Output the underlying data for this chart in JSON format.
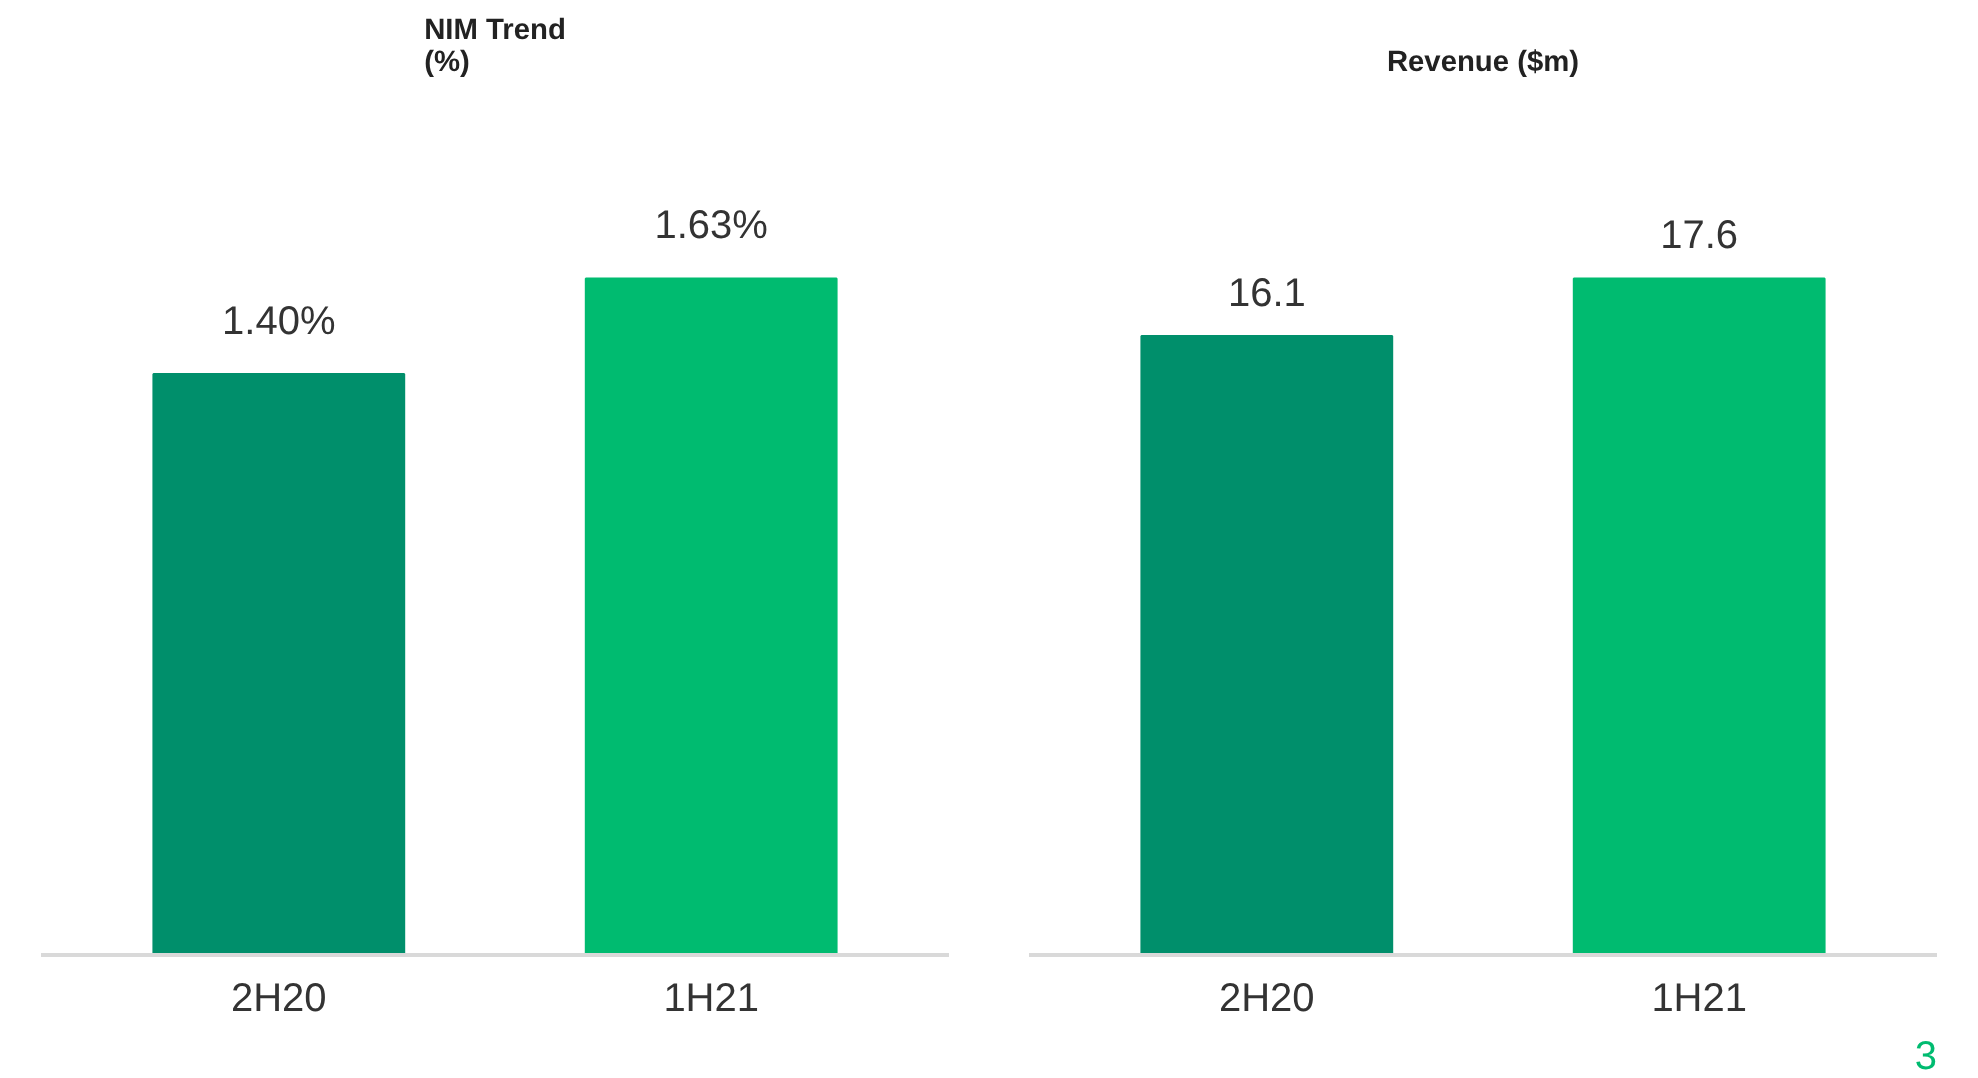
{
  "chart_data": [
    {
      "type": "bar",
      "title": "NIM Trend\n(%)",
      "categories": [
        "2H20",
        "1H21"
      ],
      "values": [
        1.4,
        1.63
      ],
      "colors": [
        "#008f6b",
        "#00bb70"
      ],
      "value_labels": [
        "1.40%",
        "1.63%"
      ],
      "tick_labels": "x",
      "grid": false
    },
    {
      "type": "bar",
      "title": "Revenue ($m)",
      "categories": [
        "2H20",
        "1H21"
      ],
      "values": [
        16.1,
        17.6
      ],
      "colors": [
        "#008f6b",
        "#00bb70"
      ],
      "data_labels": true,
      "tick_labels": "x",
      "grid": false,
      "annotations": [
        "3"
      ]
    }
  ]
}
